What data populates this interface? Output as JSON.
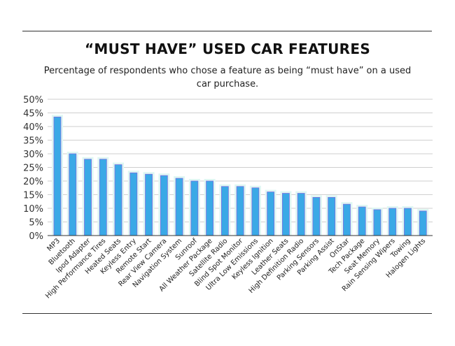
{
  "chart_data": {
    "type": "bar",
    "title": "“MUST HAVE” USED CAR FEATURES",
    "subtitle": "Percentage of respondents who chose a feature as being “must have” on a used car purchase.",
    "xlabel": "",
    "ylabel": "",
    "ylim": [
      0,
      50
    ],
    "yticks": [
      "0%",
      "5%",
      "10%",
      "15%",
      "20%",
      "25%",
      "30%",
      "35%",
      "40%",
      "45%",
      "50%"
    ],
    "grid": true,
    "categories": [
      "MP3",
      "Bluetooth",
      "Ipod Adapter",
      "High Performance Tires",
      "Heated Seats",
      "Keyless Entry",
      "Remote Start",
      "Rear View Camera",
      "Navigation System",
      "Sunroof",
      "All Weather Package",
      "Satellite Radio",
      "Blind Spot Monitor",
      "Ultra Low Emissions",
      "Keyless Ignition",
      "Leather Seats",
      "High Definition Radio",
      "Parking Sensors",
      "Parking Assist",
      "OnStar",
      "Tech Package",
      "Seat Memory",
      "Rain Sensing Wipers",
      "Towing",
      "Halogen Lights"
    ],
    "values": [
      43.5,
      30,
      28,
      28,
      26,
      23,
      22.5,
      22,
      21,
      20,
      20,
      18,
      18,
      17.5,
      16,
      15.5,
      15.5,
      14,
      14,
      11.5,
      10.5,
      9.5,
      10,
      10,
      9
    ],
    "colors": {
      "bar": "#3aa9e6",
      "bar_edge": "#7b6fe0",
      "bar_glow": "#dff7f3",
      "grid": "#cfcfcf",
      "axis": "#333333"
    }
  }
}
